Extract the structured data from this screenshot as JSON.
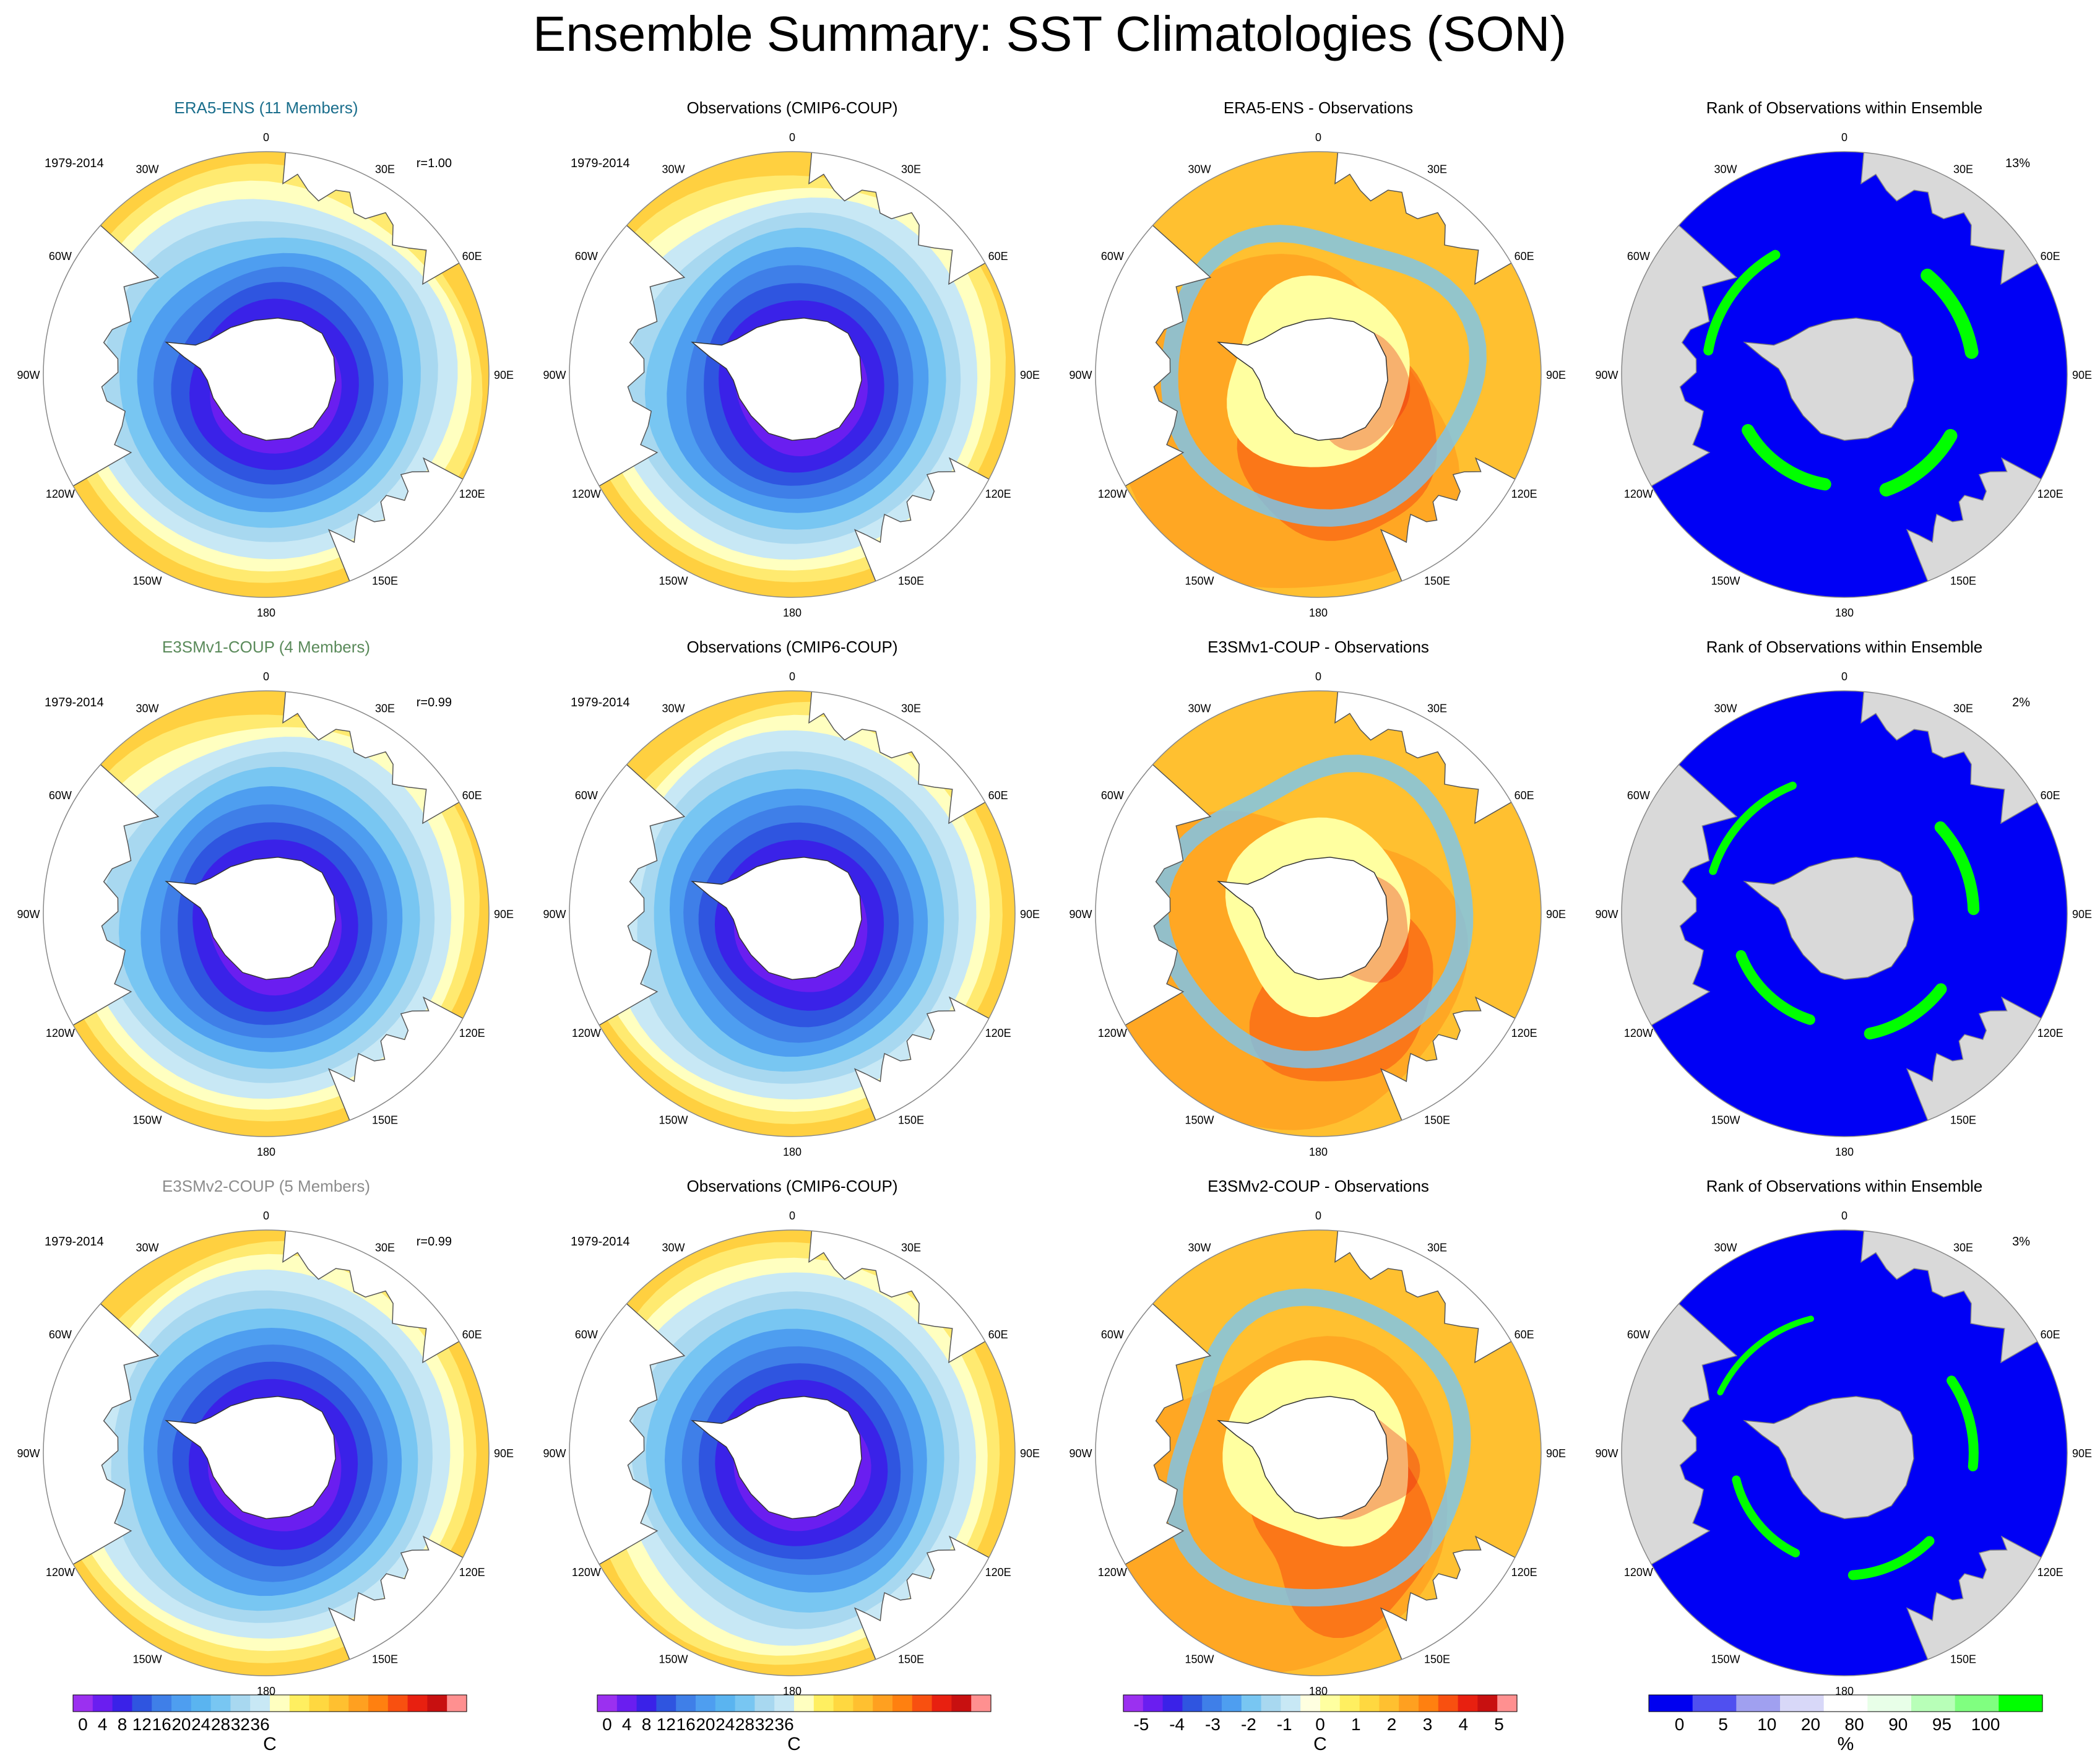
{
  "title": "Ensemble Summary: SST Climatologies (SON)",
  "lon_labels": [
    "0",
    "30E",
    "60E",
    "90E",
    "120E",
    "150E",
    "180",
    "150W",
    "120W",
    "90W",
    "60W",
    "30W"
  ],
  "colors": {
    "ocean_blue": "#0000f5",
    "green": "#00ff00",
    "land_gray": "#d9d9d9",
    "land_white": "#ffffff"
  },
  "rows": [
    {
      "model_title": "ERA5-ENS (11 Members)",
      "model_title_color": "#1a6e8c",
      "period": "1979-2014",
      "correlation": "r=1.00",
      "obs_title": "Observations (CMIP6-COUP)",
      "obs_period": "1979-2014",
      "diff_title": "ERA5-ENS - Observations",
      "rank_title": "Rank of Observations within Ensemble",
      "rank_percent": "13%"
    },
    {
      "model_title": "E3SMv1-COUP (4 Members)",
      "model_title_color": "#5a8a5a",
      "period": "1979-2014",
      "correlation": "r=0.99",
      "obs_title": "Observations (CMIP6-COUP)",
      "obs_period": "1979-2014",
      "diff_title": "E3SMv1-COUP - Observations",
      "rank_title": "Rank of Observations within Ensemble",
      "rank_percent": "2%"
    },
    {
      "model_title": "E3SMv2-COUP (5 Members)",
      "model_title_color": "#8c8c8c",
      "period": "1979-2014",
      "correlation": "r=0.99",
      "obs_title": "Observations (CMIP6-COUP)",
      "obs_period": "1979-2014",
      "diff_title": "E3SMv2-COUP - Observations",
      "rank_title": "Rank of Observations within Ensemble",
      "rank_percent": "3%"
    }
  ],
  "colorbars": [
    {
      "unit": "C",
      "tick_labels": [
        "0",
        "4",
        "8",
        "12",
        "16",
        "20",
        "24",
        "28",
        "32",
        "36"
      ],
      "colors": [
        "#9b30f0",
        "#6a1ef0",
        "#3a22e8",
        "#2f55e0",
        "#3f7fe8",
        "#4e9ef0",
        "#5ab4f0",
        "#78c6f2",
        "#a8d8f0",
        "#c8e8f5",
        "#ffffc0",
        "#ffef60",
        "#ffd840",
        "#ffc030",
        "#ffa020",
        "#ff8010",
        "#f85010",
        "#e82010",
        "#c81010",
        "#ff9090"
      ]
    },
    {
      "unit": "C",
      "tick_labels": [
        "0",
        "4",
        "8",
        "12",
        "16",
        "20",
        "24",
        "28",
        "32",
        "36"
      ],
      "colors": [
        "#9b30f0",
        "#6a1ef0",
        "#3a22e8",
        "#2f55e0",
        "#3f7fe8",
        "#4e9ef0",
        "#5ab4f0",
        "#78c6f2",
        "#a8d8f0",
        "#c8e8f5",
        "#ffffc0",
        "#ffef60",
        "#ffd840",
        "#ffc030",
        "#ffa020",
        "#ff8010",
        "#f85010",
        "#e82010",
        "#c81010",
        "#ff9090"
      ]
    },
    {
      "unit": "C",
      "tick_labels": [
        "-5",
        "-4",
        "-3",
        "-2",
        "-1",
        "0",
        "1",
        "2",
        "3",
        "4",
        "5"
      ],
      "colors": [
        "#9b30f0",
        "#6a1ef0",
        "#3a22e8",
        "#2f55e0",
        "#3f7fe8",
        "#4e9ef0",
        "#78c6f2",
        "#a8d8f0",
        "#c8e8f5",
        "#ffffe0",
        "#ffffa0",
        "#ffef60",
        "#ffd840",
        "#ffc030",
        "#ffa020",
        "#ff8010",
        "#f85010",
        "#e82010",
        "#c81010",
        "#ff9090"
      ]
    },
    {
      "unit": "%",
      "tick_labels": [
        "0",
        "5",
        "10",
        "20",
        "80",
        "90",
        "95",
        "100"
      ],
      "colors": [
        "#0000f0",
        "#5050f0",
        "#a0a0f0",
        "#d8d8f8",
        "#ffffff",
        "#e8ffe8",
        "#b8ffb8",
        "#80ff80",
        "#00ff00"
      ]
    }
  ],
  "chart_data": [
    {
      "type": "heatmap",
      "title": "Ensemble Summary: SST Climatologies (SON)",
      "projection": "south polar stereographic",
      "panels": [
        {
          "row": 1,
          "col": 1,
          "title": "ERA5-ENS (11 Members)",
          "variable": "SST climatology",
          "units": "C",
          "range": [
            0,
            36
          ],
          "period": "1979-2014",
          "correlation": 1.0
        },
        {
          "row": 1,
          "col": 2,
          "title": "Observations (CMIP6-COUP)",
          "variable": "SST climatology",
          "units": "C",
          "range": [
            0,
            36
          ],
          "period": "1979-2014"
        },
        {
          "row": 1,
          "col": 3,
          "title": "ERA5-ENS - Observations",
          "variable": "SST difference",
          "units": "C",
          "range": [
            -5,
            5
          ]
        },
        {
          "row": 1,
          "col": 4,
          "title": "Rank of Observations within Ensemble",
          "units": "%",
          "range": [
            0,
            100
          ],
          "percent_extreme": 13
        },
        {
          "row": 2,
          "col": 1,
          "title": "E3SMv1-COUP (4 Members)",
          "variable": "SST climatology",
          "units": "C",
          "range": [
            0,
            36
          ],
          "period": "1979-2014",
          "correlation": 0.99
        },
        {
          "row": 2,
          "col": 2,
          "title": "Observations (CMIP6-COUP)",
          "variable": "SST climatology",
          "units": "C",
          "range": [
            0,
            36
          ],
          "period": "1979-2014"
        },
        {
          "row": 2,
          "col": 3,
          "title": "E3SMv1-COUP - Observations",
          "variable": "SST difference",
          "units": "C",
          "range": [
            -5,
            5
          ]
        },
        {
          "row": 2,
          "col": 4,
          "title": "Rank of Observations within Ensemble",
          "units": "%",
          "range": [
            0,
            100
          ],
          "percent_extreme": 2
        },
        {
          "row": 3,
          "col": 1,
          "title": "E3SMv2-COUP (5 Members)",
          "variable": "SST climatology",
          "units": "C",
          "range": [
            0,
            36
          ],
          "period": "1979-2014",
          "correlation": 0.99
        },
        {
          "row": 3,
          "col": 2,
          "title": "Observations (CMIP6-COUP)",
          "variable": "SST climatology",
          "units": "C",
          "range": [
            0,
            36
          ],
          "period": "1979-2014"
        },
        {
          "row": 3,
          "col": 3,
          "title": "E3SMv2-COUP - Observations",
          "variable": "SST difference",
          "units": "C",
          "range": [
            -5,
            5
          ]
        },
        {
          "row": 3,
          "col": 4,
          "title": "Rank of Observations within Ensemble",
          "units": "%",
          "range": [
            0,
            100
          ],
          "percent_extreme": 3
        }
      ],
      "colorbar_ticks": {
        "climatology": [
          0,
          4,
          8,
          12,
          16,
          20,
          24,
          28,
          32,
          36
        ],
        "difference": [
          -5,
          -4,
          -3,
          -2,
          -1,
          0,
          1,
          2,
          3,
          4,
          5
        ],
        "rank": [
          0,
          5,
          10,
          20,
          80,
          90,
          95,
          100
        ]
      }
    }
  ]
}
